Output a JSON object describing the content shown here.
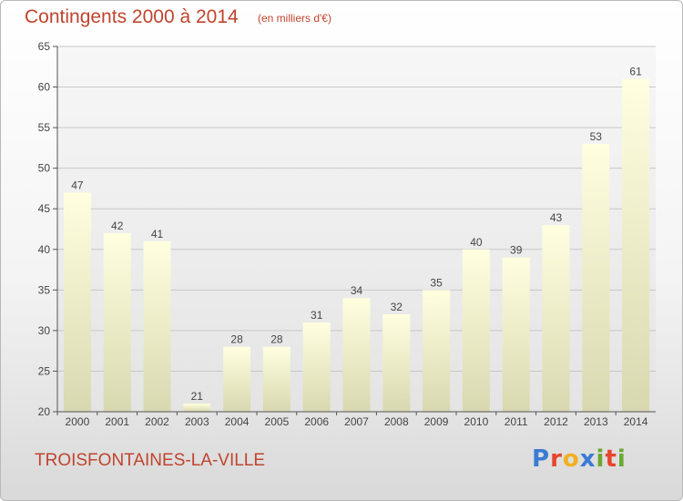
{
  "header": {
    "title": "Contingents 2000 à 2014",
    "unit": "(en milliers d'€)"
  },
  "footer": {
    "place": "TROISFONTAINES-LA-VILLE",
    "brand": "Proxiti",
    "brand_colors": [
      "#3a7bd5",
      "#e8452c",
      "#f2b01e",
      "#3a7bd5",
      "#6aa830",
      "#e8452c",
      "#6aa830"
    ]
  },
  "chart_data": {
    "type": "bar",
    "categories": [
      "2000",
      "2001",
      "2002",
      "2003",
      "2004",
      "2005",
      "2006",
      "2007",
      "2008",
      "2009",
      "2010",
      "2011",
      "2012",
      "2013",
      "2014"
    ],
    "values": [
      47,
      42,
      41,
      21,
      28,
      28,
      31,
      34,
      32,
      35,
      40,
      39,
      43,
      53,
      61
    ],
    "ylim": [
      20,
      65
    ],
    "yticks": [
      20,
      25,
      30,
      35,
      40,
      45,
      50,
      55,
      60,
      65
    ],
    "grid": true,
    "bar_color_top": "#ffffe0",
    "bar_color_bottom": "#d8d8b0",
    "plot_background": "#f0f0f0"
  }
}
